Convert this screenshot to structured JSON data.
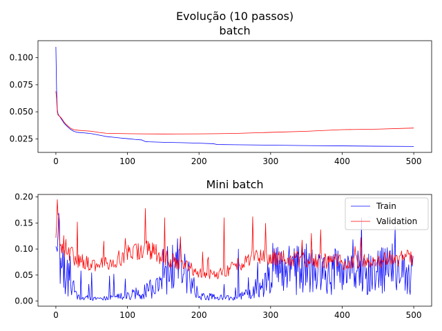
{
  "figure_title": "Evolução (10 passos)",
  "colors": {
    "train": "#0000ff",
    "validation": "#ff0000",
    "axes": "#000000",
    "legend_border": "#cccccc"
  },
  "chart_data": [
    {
      "type": "line",
      "title": "batch",
      "xlabel": "",
      "ylabel": "",
      "xlim": [
        -25,
        525
      ],
      "ylim": [
        0.0125,
        0.1157
      ],
      "xticks": [
        0,
        100,
        200,
        300,
        400,
        500
      ],
      "xtick_labels": [
        "0",
        "100",
        "200",
        "300",
        "400",
        "500"
      ],
      "yticks": [
        0.025,
        0.05,
        0.075,
        0.1
      ],
      "ytick_labels": [
        "0.025",
        "0.050",
        "0.075",
        "0.100"
      ],
      "grid": false,
      "legend": null,
      "series": [
        {
          "key": "train",
          "color": "#0000ff",
          "points": [
            [
              0,
              0.11
            ],
            [
              1,
              0.07
            ],
            [
              2,
              0.052
            ],
            [
              3,
              0.048
            ],
            [
              5,
              0.046
            ],
            [
              8,
              0.043
            ],
            [
              10,
              0.041
            ],
            [
              12,
              0.039
            ],
            [
              15,
              0.037
            ],
            [
              20,
              0.034
            ],
            [
              25,
              0.032
            ],
            [
              30,
              0.031
            ],
            [
              40,
              0.0305
            ],
            [
              50,
              0.0298
            ],
            [
              60,
              0.0285
            ],
            [
              70,
              0.0272
            ],
            [
              80,
              0.0265
            ],
            [
              90,
              0.0258
            ],
            [
              100,
              0.0252
            ],
            [
              110,
              0.0245
            ],
            [
              120,
              0.024
            ],
            [
              125,
              0.0225
            ],
            [
              130,
              0.0223
            ],
            [
              150,
              0.0218
            ],
            [
              175,
              0.0215
            ],
            [
              200,
              0.021
            ],
            [
              220,
              0.0205
            ],
            [
              225,
              0.0198
            ],
            [
              250,
              0.0196
            ],
            [
              300,
              0.0192
            ],
            [
              350,
              0.0188
            ],
            [
              400,
              0.0185
            ],
            [
              450,
              0.0182
            ],
            [
              500,
              0.018
            ]
          ]
        },
        {
          "key": "validation",
          "color": "#ff0000",
          "points": [
            [
              0,
              0.069
            ],
            [
              1,
              0.062
            ],
            [
              2,
              0.05
            ],
            [
              3,
              0.047
            ],
            [
              5,
              0.046
            ],
            [
              8,
              0.044
            ],
            [
              10,
              0.042
            ],
            [
              12,
              0.04
            ],
            [
              15,
              0.038
            ],
            [
              20,
              0.035
            ],
            [
              25,
              0.0335
            ],
            [
              30,
              0.033
            ],
            [
              40,
              0.0325
            ],
            [
              50,
              0.032
            ],
            [
              60,
              0.031
            ],
            [
              70,
              0.0302
            ],
            [
              80,
              0.03
            ],
            [
              100,
              0.0298
            ],
            [
              120,
              0.0296
            ],
            [
              150,
              0.0295
            ],
            [
              200,
              0.0296
            ],
            [
              225,
              0.0298
            ],
            [
              250,
              0.03
            ],
            [
              300,
              0.031
            ],
            [
              350,
              0.032
            ],
            [
              400,
              0.0335
            ],
            [
              450,
              0.034
            ],
            [
              500,
              0.035
            ]
          ]
        }
      ]
    },
    {
      "type": "line",
      "title": "Mini batch",
      "xlabel": "",
      "ylabel": "",
      "xlim": [
        -25,
        525
      ],
      "ylim": [
        -0.0098,
        0.2048
      ],
      "xticks": [
        0,
        100,
        200,
        300,
        400,
        500
      ],
      "xtick_labels": [
        "0",
        "100",
        "200",
        "300",
        "400",
        "500"
      ],
      "yticks": [
        0.0,
        0.05,
        0.1,
        0.15,
        0.2
      ],
      "ytick_labels": [
        "0.00",
        "0.05",
        "0.10",
        "0.15",
        "0.20"
      ],
      "grid": false,
      "legend": {
        "position": "top-right",
        "entries": [
          "Train",
          "Validation"
        ]
      },
      "series": [
        {
          "name": "Train",
          "key": "train",
          "color": "#0000ff",
          "length": 500,
          "pattern": "noisy: ~0.10 start, low 0.00–0.03 over 30–150, bursts up to 0.12 near 150–170, sparse after 180, frequent spikes 0.05–0.11 after 280",
          "keypoints": [
            [
              0,
              0.105
            ],
            [
              5,
              0.09
            ],
            [
              10,
              0.06
            ],
            [
              20,
              0.04
            ],
            [
              30,
              0.01
            ],
            [
              50,
              0.005
            ],
            [
              75,
              0.006
            ],
            [
              100,
              0.01
            ],
            [
              150,
              0.03
            ],
            [
              170,
              0.08
            ],
            [
              200,
              0.01
            ],
            [
              250,
              0.005
            ],
            [
              280,
              0.02
            ],
            [
              300,
              0.06
            ],
            [
              350,
              0.06
            ],
            [
              400,
              0.05
            ],
            [
              450,
              0.06
            ],
            [
              500,
              0.05
            ]
          ]
        },
        {
          "name": "Validation",
          "key": "validation",
          "color": "#ff0000",
          "length": 500,
          "pattern": "noisy around ~0.09 early, dipping to ~0.05 near 200–230, rising to ~0.08 by 500, with spikes 0.19 (x≈2), 0.15 (x≈30), 0.18 (x≈125), 0.16 (x≈235), 0.16 (x≈275)",
          "keypoints": [
            [
              0,
              0.11
            ],
            [
              2,
              0.195
            ],
            [
              5,
              0.12
            ],
            [
              20,
              0.09
            ],
            [
              30,
              0.08
            ],
            [
              50,
              0.07
            ],
            [
              75,
              0.075
            ],
            [
              100,
              0.09
            ],
            [
              125,
              0.1
            ],
            [
              150,
              0.085
            ],
            [
              175,
              0.07
            ],
            [
              200,
              0.055
            ],
            [
              225,
              0.05
            ],
            [
              250,
              0.065
            ],
            [
              275,
              0.09
            ],
            [
              300,
              0.085
            ],
            [
              350,
              0.08
            ],
            [
              400,
              0.075
            ],
            [
              450,
              0.078
            ],
            [
              500,
              0.085
            ]
          ]
        }
      ]
    }
  ]
}
